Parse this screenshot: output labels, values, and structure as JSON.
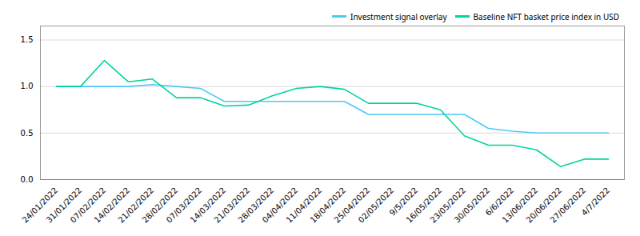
{
  "chart_data": {
    "type": "line",
    "categories": [
      "24/01/2022",
      "31/01/2022",
      "07/02/2022",
      "14/02/2022",
      "21/02/2022",
      "28/02/2022",
      "07/03/2022",
      "14/03/2022",
      "21/03/2022",
      "28/03/2022",
      "04/04/2022",
      "11/04/2022",
      "18/04/2022",
      "25/04/2022",
      "02/05/2022",
      "9/5/2022",
      "16/05/2022",
      "23/05/2022",
      "30/05/2022",
      "6/6/2022",
      "13/06/2022",
      "20/06/2022",
      "27/06/2022",
      "4/7/2022"
    ],
    "series": [
      {
        "name": "Investment signal overlay",
        "color": "#4dc9f6",
        "values": [
          1.0,
          1.0,
          1.0,
          1.0,
          1.02,
          1.0,
          0.98,
          0.84,
          0.84,
          0.84,
          0.84,
          0.84,
          0.84,
          0.7,
          0.7,
          0.7,
          0.7,
          0.7,
          0.55,
          0.52,
          0.5,
          0.5,
          0.5,
          0.5
        ]
      },
      {
        "name": "Baseline NFT basket price index in USD",
        "color": "#00d4a0",
        "values": [
          1.0,
          1.0,
          1.28,
          1.05,
          1.08,
          0.88,
          0.88,
          0.79,
          0.8,
          0.9,
          0.98,
          1.0,
          0.97,
          0.82,
          0.82,
          0.82,
          0.75,
          0.47,
          0.37,
          0.37,
          0.32,
          0.14,
          0.22,
          0.22
        ]
      }
    ],
    "ylim": [
      0.0,
      1.65
    ],
    "yticks": [
      {
        "value": 0.0,
        "label": "0.0"
      },
      0.5,
      {
        "value": 1.0,
        "label": "1.0"
      },
      1.5
    ],
    "grid": true,
    "legend": "upper right"
  }
}
